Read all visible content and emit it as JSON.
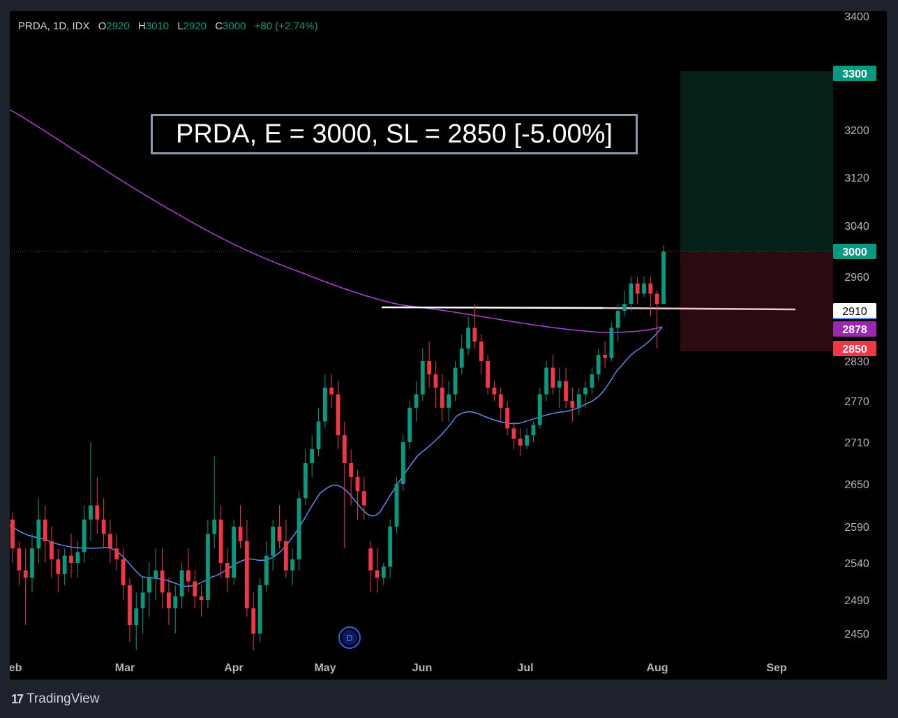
{
  "header": {
    "symbol_line": "PRDA, 1D, IDX",
    "open_label": "O",
    "open": "2920",
    "high_label": "H",
    "high": "3010",
    "low_label": "L",
    "low": "2920",
    "close_label": "C",
    "close": "3000",
    "change": "+80 (+2.74%)"
  },
  "annotation_title": "PRDA, E = 3000, SL = 2850 [-5.00%]",
  "footer": {
    "brand": "TradingView",
    "logo_icon": "tradingview-logo-icon"
  },
  "earnings_marker": "D",
  "colors": {
    "background": "#000000",
    "up": "#089981",
    "down": "#f23645",
    "ma_short": "#5b8def",
    "ma_long": "#b23fd9",
    "target_zone": "#052018",
    "stop_zone": "#2c0b10",
    "target_label": "#089981",
    "stop_label": "#f23645",
    "ma_long_label": "#9c27b0"
  },
  "chart_data": {
    "type": "candlestick",
    "symbol": "PRDA",
    "timeframe": "1D",
    "exchange": "IDX",
    "y_axis": {
      "ticks": [
        3400,
        3300,
        3200,
        3120,
        3040,
        3000,
        2960,
        2910,
        2878,
        2850,
        2830,
        2770,
        2710,
        2650,
        2590,
        2540,
        2490,
        2450
      ],
      "tick_labels": [
        "3400",
        "3200",
        "3120",
        "3040",
        "2960",
        "2830",
        "2770",
        "2710",
        "2650",
        "2590",
        "2540",
        "2490",
        "2450"
      ]
    },
    "x_axis": {
      "month_labels": [
        "eb",
        "Mar",
        "Apr",
        "May",
        "Jun",
        "Jul",
        "Aug",
        "Sep"
      ]
    },
    "price_tags": [
      {
        "value": "3300",
        "kind": "target"
      },
      {
        "value": "3000",
        "kind": "entry"
      },
      {
        "value": "2910",
        "kind": "resistance"
      },
      {
        "value": "2878",
        "kind": "ma_long"
      },
      {
        "value": "2850",
        "kind": "stop"
      }
    ],
    "levels": {
      "entry": 3000,
      "stop_loss": 2850,
      "target": 3300,
      "resistance": 2910
    },
    "candles_ohlc": [
      [
        2600,
        2610,
        2540,
        2560
      ],
      [
        2560,
        2570,
        2510,
        2530
      ],
      [
        2530,
        2560,
        2460,
        2520
      ],
      [
        2520,
        2580,
        2500,
        2560
      ],
      [
        2560,
        2630,
        2540,
        2600
      ],
      [
        2600,
        2620,
        2540,
        2570
      ],
      [
        2570,
        2590,
        2520,
        2545
      ],
      [
        2545,
        2560,
        2500,
        2525
      ],
      [
        2525,
        2560,
        2510,
        2550
      ],
      [
        2550,
        2580,
        2520,
        2540
      ],
      [
        2540,
        2570,
        2520,
        2555
      ],
      [
        2555,
        2620,
        2540,
        2600
      ],
      [
        2600,
        2710,
        2570,
        2620
      ],
      [
        2620,
        2660,
        2580,
        2600
      ],
      [
        2600,
        2630,
        2560,
        2580
      ],
      [
        2580,
        2600,
        2540,
        2560
      ],
      [
        2560,
        2580,
        2530,
        2545
      ],
      [
        2545,
        2560,
        2490,
        2510
      ],
      [
        2510,
        2520,
        2440,
        2460
      ],
      [
        2460,
        2500,
        2430,
        2480
      ],
      [
        2480,
        2520,
        2450,
        2500
      ],
      [
        2500,
        2540,
        2470,
        2520
      ],
      [
        2520,
        2560,
        2490,
        2530
      ],
      [
        2530,
        2560,
        2480,
        2500
      ],
      [
        2500,
        2520,
        2460,
        2480
      ],
      [
        2480,
        2510,
        2450,
        2495
      ],
      [
        2495,
        2540,
        2480,
        2530
      ],
      [
        2530,
        2560,
        2500,
        2515
      ],
      [
        2515,
        2530,
        2480,
        2495
      ],
      [
        2495,
        2510,
        2470,
        2490
      ],
      [
        2490,
        2600,
        2480,
        2580
      ],
      [
        2580,
        2690,
        2560,
        2600
      ],
      [
        2600,
        2620,
        2520,
        2540
      ],
      [
        2540,
        2560,
        2500,
        2520
      ],
      [
        2520,
        2600,
        2510,
        2590
      ],
      [
        2590,
        2620,
        2560,
        2570
      ],
      [
        2570,
        2600,
        2470,
        2480
      ],
      [
        2480,
        2500,
        2430,
        2450
      ],
      [
        2450,
        2520,
        2440,
        2510
      ],
      [
        2510,
        2570,
        2500,
        2550
      ],
      [
        2550,
        2600,
        2530,
        2590
      ],
      [
        2590,
        2620,
        2560,
        2570
      ],
      [
        2570,
        2600,
        2520,
        2530
      ],
      [
        2530,
        2560,
        2510,
        2545
      ],
      [
        2545,
        2640,
        2530,
        2630
      ],
      [
        2630,
        2700,
        2620,
        2680
      ],
      [
        2680,
        2720,
        2660,
        2700
      ],
      [
        2700,
        2760,
        2690,
        2740
      ],
      [
        2740,
        2810,
        2730,
        2790
      ],
      [
        2790,
        2810,
        2760,
        2780
      ],
      [
        2780,
        2800,
        2700,
        2720
      ],
      [
        2720,
        2740,
        2560,
        2680
      ],
      [
        2680,
        2700,
        2620,
        2660
      ],
      [
        2660,
        2670,
        2600,
        2640
      ],
      [
        2640,
        2660,
        2600,
        2620
      ],
      [
        2560,
        2570,
        2500,
        2530
      ],
      [
        2530,
        2560,
        2500,
        2520
      ],
      [
        2520,
        2540,
        2510,
        2535
      ],
      [
        2535,
        2600,
        2520,
        2590
      ],
      [
        2590,
        2660,
        2580,
        2650
      ],
      [
        2650,
        2720,
        2640,
        2710
      ],
      [
        2710,
        2770,
        2700,
        2760
      ],
      [
        2760,
        2800,
        2740,
        2780
      ],
      [
        2780,
        2850,
        2770,
        2830
      ],
      [
        2830,
        2860,
        2790,
        2810
      ],
      [
        2810,
        2830,
        2760,
        2790
      ],
      [
        2790,
        2810,
        2740,
        2760
      ],
      [
        2760,
        2800,
        2740,
        2780
      ],
      [
        2780,
        2830,
        2770,
        2820
      ],
      [
        2820,
        2870,
        2810,
        2850
      ],
      [
        2850,
        2900,
        2840,
        2880
      ],
      [
        2880,
        2920,
        2850,
        2860
      ],
      [
        2860,
        2870,
        2810,
        2830
      ],
      [
        2830,
        2840,
        2780,
        2790
      ],
      [
        2790,
        2800,
        2770,
        2780
      ],
      [
        2780,
        2790,
        2740,
        2760
      ],
      [
        2760,
        2770,
        2720,
        2730
      ],
      [
        2730,
        2740,
        2700,
        2715
      ],
      [
        2715,
        2730,
        2690,
        2705
      ],
      [
        2705,
        2730,
        2700,
        2720
      ],
      [
        2720,
        2740,
        2710,
        2735
      ],
      [
        2735,
        2790,
        2730,
        2780
      ],
      [
        2780,
        2830,
        2770,
        2820
      ],
      [
        2820,
        2840,
        2780,
        2790
      ],
      [
        2790,
        2820,
        2760,
        2800
      ],
      [
        2800,
        2820,
        2760,
        2770
      ],
      [
        2770,
        2790,
        2740,
        2760
      ],
      [
        2760,
        2790,
        2750,
        2780
      ],
      [
        2780,
        2800,
        2760,
        2790
      ],
      [
        2790,
        2820,
        2780,
        2810
      ],
      [
        2810,
        2850,
        2800,
        2840
      ],
      [
        2840,
        2860,
        2820,
        2835
      ],
      [
        2835,
        2890,
        2830,
        2880
      ],
      [
        2880,
        2920,
        2860,
        2910
      ],
      [
        2910,
        2940,
        2900,
        2920
      ],
      [
        2920,
        2960,
        2910,
        2950
      ],
      [
        2950,
        2960,
        2920,
        2935
      ],
      [
        2935,
        2960,
        2930,
        2950
      ],
      [
        2950,
        2960,
        2900,
        2935
      ],
      [
        2935,
        2940,
        2850,
        2920
      ],
      [
        2920,
        3010,
        2920,
        3000
      ]
    ]
  }
}
